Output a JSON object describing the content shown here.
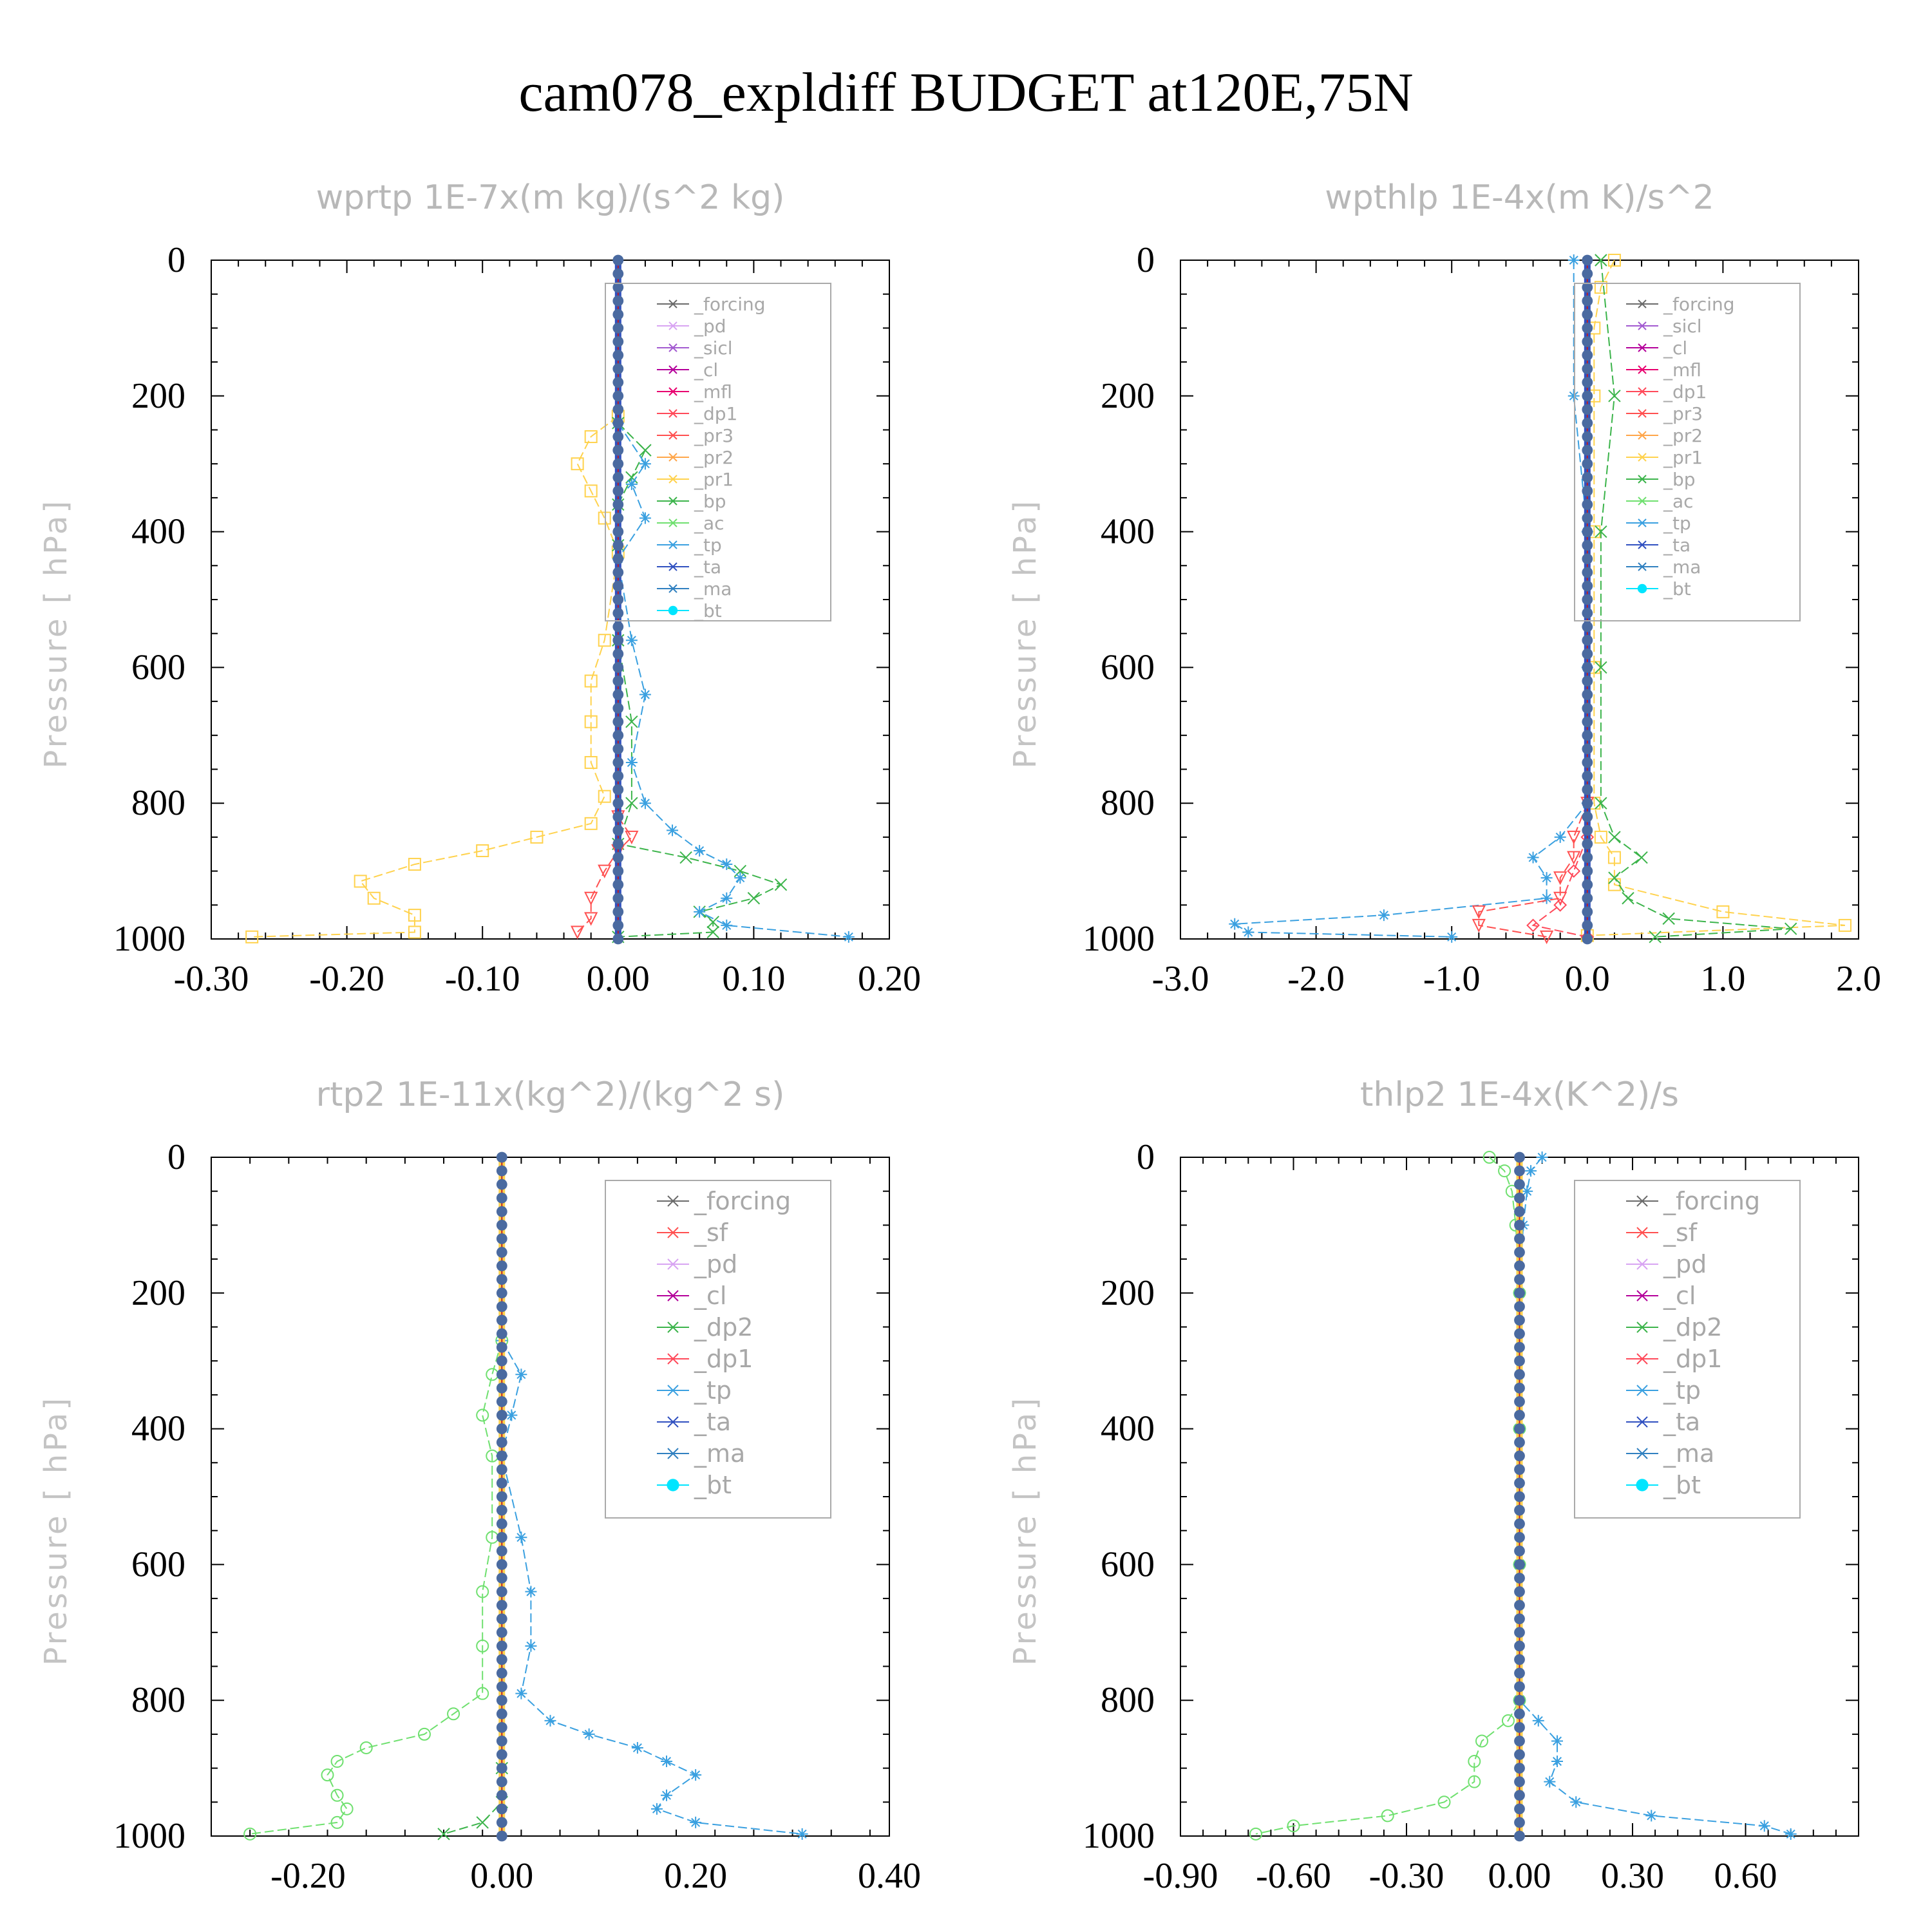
{
  "figure": {
    "title": "cam078_expldiff  BUDGET at120E,75N"
  },
  "colors": {
    "forcing": "#6b6b6b",
    "pd": "#d8a4f2",
    "sicl": "#a25ad0",
    "cl": "#b4009a",
    "mfl": "#e8006f",
    "dp1": "#ff4a5a",
    "pr3": "#ff5050",
    "pr2": "#ffa64a",
    "pr1": "#ffd24d",
    "bp": "#3cb44b",
    "ac": "#6fe06f",
    "tp": "#3aa0e0",
    "ta": "#3050c0",
    "ma": "#3080c0",
    "bt": "#00e5ff",
    "sf": "#ff5050",
    "dp2": "#3cb44b"
  },
  "chart_data": [
    {
      "type": "line",
      "title": "wprtp  1E-7x(m kg)/(s^2 kg)",
      "ylabel": "Pressure [ hPa]",
      "xlim": [
        -0.3,
        0.2
      ],
      "ylim": [
        1000,
        0
      ],
      "xticks": [
        "-0.30",
        "-0.20",
        "-0.10",
        "0.00",
        "0.10",
        "0.20"
      ],
      "xtick_values": [
        -0.3,
        -0.2,
        -0.1,
        0.0,
        0.1,
        0.2
      ],
      "yticks": [
        "0",
        "200",
        "400",
        "600",
        "800",
        "1000"
      ],
      "ytick_values": [
        0,
        200,
        400,
        600,
        800,
        1000
      ],
      "legend": [
        "_forcing",
        "_pd",
        "_sicl",
        "_cl",
        "_mfl",
        "_dp1",
        "_pr3",
        "_pr2",
        "_pr1",
        "_bp",
        "_ac",
        "_tp",
        "_ta",
        "_ma",
        "_bt"
      ],
      "legend_position": "top-right",
      "series": [
        {
          "name": "_pr1",
          "color_key": "pr1",
          "marker": "square",
          "p": [
            230,
            260,
            300,
            340,
            380,
            430,
            560,
            620,
            680,
            740,
            790,
            830,
            850,
            870,
            890,
            915,
            940,
            965,
            990,
            997
          ],
          "v": [
            0.0,
            -0.02,
            -0.03,
            -0.02,
            -0.01,
            0.0,
            -0.01,
            -0.02,
            -0.02,
            -0.02,
            -0.01,
            -0.02,
            -0.06,
            -0.1,
            -0.15,
            -0.19,
            -0.18,
            -0.15,
            -0.15,
            -0.27
          ]
        },
        {
          "name": "_bp",
          "color_key": "bp",
          "marker": "x",
          "p": [
            240,
            280,
            320,
            360,
            420,
            560,
            680,
            800,
            860,
            880,
            900,
            920,
            940,
            960,
            975,
            990,
            997
          ],
          "v": [
            0.0,
            0.02,
            0.01,
            0.0,
            0.0,
            0.0,
            0.01,
            0.01,
            0.0,
            0.05,
            0.09,
            0.12,
            0.1,
            0.06,
            0.07,
            0.07,
            0.0
          ]
        },
        {
          "name": "_tp",
          "color_key": "tp",
          "marker": "star",
          "p": [
            240,
            300,
            330,
            380,
            440,
            560,
            640,
            740,
            800,
            840,
            870,
            890,
            910,
            940,
            960,
            980,
            997
          ],
          "v": [
            0.0,
            0.02,
            0.01,
            0.02,
            0.0,
            0.01,
            0.02,
            0.01,
            0.02,
            0.04,
            0.06,
            0.08,
            0.09,
            0.08,
            0.06,
            0.08,
            0.17
          ]
        },
        {
          "name": "_dp1",
          "color_key": "pr3",
          "marker": "triangle-down",
          "p": [
            820,
            850,
            870,
            900,
            940,
            970,
            990
          ],
          "v": [
            0.0,
            0.01,
            0.0,
            -0.01,
            -0.02,
            -0.02,
            -0.03
          ]
        },
        {
          "name": "_bt",
          "color_key": "ta",
          "marker": "dot",
          "p": [
            0,
            1000
          ],
          "v": [
            0.0,
            0.0
          ]
        }
      ]
    },
    {
      "type": "line",
      "title": "wpthlp  1E-4x(m K)/s^2",
      "ylabel": "Pressure [ hPa]",
      "xlim": [
        -3.0,
        2.0
      ],
      "ylim": [
        1000,
        0
      ],
      "xticks": [
        "-3.0",
        "-2.0",
        "-1.0",
        "0.0",
        "1.0",
        "2.0"
      ],
      "xtick_values": [
        -3.0,
        -2.0,
        -1.0,
        0.0,
        1.0,
        2.0
      ],
      "yticks": [
        "0",
        "200",
        "400",
        "600",
        "800",
        "1000"
      ],
      "ytick_values": [
        0,
        200,
        400,
        600,
        800,
        1000
      ],
      "legend": [
        "_forcing",
        "_sicl",
        "_cl",
        "_mfl",
        "_dp1",
        "_pr3",
        "_pr2",
        "_pr1",
        "_bp",
        "_ac",
        "_tp",
        "_ta",
        "_ma",
        "_bt"
      ],
      "legend_position": "top-right",
      "series": [
        {
          "name": "_pr1",
          "color_key": "pr1",
          "marker": "square",
          "p": [
            0,
            40,
            100,
            200,
            400,
            600,
            800,
            850,
            880,
            920,
            960,
            980,
            995
          ],
          "v": [
            0.2,
            0.1,
            0.05,
            0.05,
            0.05,
            0.05,
            0.05,
            0.1,
            0.2,
            0.2,
            1.0,
            1.9,
            0.0
          ]
        },
        {
          "name": "_bp",
          "color_key": "bp",
          "marker": "x",
          "p": [
            0,
            200,
            400,
            600,
            800,
            850,
            880,
            910,
            940,
            970,
            985,
            997
          ],
          "v": [
            0.1,
            0.2,
            0.1,
            0.1,
            0.1,
            0.2,
            0.4,
            0.2,
            0.3,
            0.6,
            1.5,
            0.5
          ]
        },
        {
          "name": "_tp",
          "color_key": "tp",
          "marker": "star",
          "p": [
            0,
            200,
            400,
            600,
            800,
            850,
            880,
            910,
            940,
            965,
            978,
            990,
            997
          ],
          "v": [
            -0.1,
            -0.1,
            0.0,
            0.0,
            0.0,
            -0.2,
            -0.4,
            -0.3,
            -0.3,
            -1.5,
            -2.6,
            -2.5,
            -1.0
          ]
        },
        {
          "name": "_pr3",
          "color_key": "pr3",
          "marker": "triangle-down",
          "p": [
            800,
            850,
            880,
            910,
            940,
            960,
            980,
            997
          ],
          "v": [
            0.0,
            -0.1,
            -0.1,
            -0.2,
            -0.2,
            -0.8,
            -0.8,
            -0.3
          ]
        },
        {
          "name": "_dp1",
          "color_key": "dp1",
          "marker": "diamond",
          "p": [
            850,
            900,
            950,
            980,
            997
          ],
          "v": [
            0.0,
            -0.1,
            -0.2,
            -0.4,
            0.0
          ]
        },
        {
          "name": "_bt",
          "color_key": "ta",
          "marker": "dot",
          "p": [
            0,
            1000
          ],
          "v": [
            0.0,
            0.0
          ]
        }
      ]
    },
    {
      "type": "line",
      "title": "rtp2  1E-11x(kg^2)/(kg^2 s)",
      "ylabel": "Pressure [ hPa]",
      "xlim": [
        -0.3,
        0.4
      ],
      "ylim": [
        1000,
        0
      ],
      "xticks": [
        "-0.20",
        "0.00",
        "0.20",
        "0.40"
      ],
      "xtick_values": [
        -0.2,
        0.0,
        0.2,
        0.4
      ],
      "yticks": [
        "0",
        "200",
        "400",
        "600",
        "800",
        "1000"
      ],
      "ytick_values": [
        0,
        200,
        400,
        600,
        800,
        1000
      ],
      "legend": [
        "_forcing",
        "_sf",
        "_pd",
        "_cl",
        "_dp2",
        "_dp1",
        "_tp",
        "_ta",
        "_ma",
        "_bt"
      ],
      "legend_position": "top-right",
      "series": [
        {
          "name": "_dp1",
          "color_key": "ac",
          "marker": "circle",
          "p": [
            270,
            320,
            380,
            440,
            560,
            640,
            720,
            790,
            820,
            850,
            870,
            890,
            910,
            940,
            960,
            980,
            997
          ],
          "v": [
            0.0,
            -0.01,
            -0.02,
            -0.01,
            -0.01,
            -0.02,
            -0.02,
            -0.02,
            -0.05,
            -0.08,
            -0.14,
            -0.17,
            -0.18,
            -0.17,
            -0.16,
            -0.17,
            -0.26
          ]
        },
        {
          "name": "_tp",
          "color_key": "tp",
          "marker": "star",
          "p": [
            270,
            320,
            380,
            440,
            560,
            640,
            720,
            790,
            830,
            850,
            870,
            890,
            910,
            940,
            960,
            980,
            997
          ],
          "v": [
            0.0,
            0.02,
            0.01,
            0.0,
            0.02,
            0.03,
            0.03,
            0.02,
            0.05,
            0.09,
            0.14,
            0.17,
            0.2,
            0.17,
            0.16,
            0.2,
            0.31
          ]
        },
        {
          "name": "_dp2",
          "color_key": "dp2",
          "marker": "x",
          "p": [
            900,
            950,
            980,
            997
          ],
          "v": [
            0.0,
            0.0,
            -0.02,
            -0.06
          ]
        },
        {
          "name": "_bt",
          "color_key": "pr1",
          "marker": "dot",
          "p": [
            0,
            1000
          ],
          "v": [
            0.0,
            0.0
          ]
        }
      ]
    },
    {
      "type": "line",
      "title": "thlp2  1E-4x(K^2)/s",
      "ylabel": "Pressure [ hPa]",
      "xlim": [
        -0.9,
        0.9
      ],
      "ylim": [
        1000,
        0
      ],
      "xticks": [
        "-0.90",
        "-0.60",
        "-0.30",
        "0.00",
        "0.30",
        "0.60"
      ],
      "xtick_values": [
        -0.9,
        -0.6,
        -0.3,
        0.0,
        0.3,
        0.6
      ],
      "yticks": [
        "0",
        "200",
        "400",
        "600",
        "800",
        "1000"
      ],
      "ytick_values": [
        0,
        200,
        400,
        600,
        800,
        1000
      ],
      "legend": [
        "_forcing",
        "_sf",
        "_pd",
        "_cl",
        "_dp2",
        "_dp1",
        "_tp",
        "_ta",
        "_ma",
        "_bt"
      ],
      "legend_position": "top-right",
      "series": [
        {
          "name": "_dp1",
          "color_key": "ac",
          "marker": "circle",
          "p": [
            0,
            20,
            50,
            100,
            200,
            400,
            600,
            800,
            830,
            860,
            890,
            920,
            950,
            970,
            985,
            997
          ],
          "v": [
            -0.08,
            -0.04,
            -0.02,
            -0.01,
            0.0,
            0.0,
            0.0,
            0.0,
            -0.03,
            -0.1,
            -0.12,
            -0.12,
            -0.2,
            -0.35,
            -0.6,
            -0.7
          ]
        },
        {
          "name": "_tp",
          "color_key": "tp",
          "marker": "star",
          "p": [
            0,
            20,
            50,
            100,
            200,
            400,
            600,
            800,
            830,
            860,
            890,
            920,
            950,
            970,
            985,
            997
          ],
          "v": [
            0.06,
            0.03,
            0.02,
            0.01,
            0.0,
            0.0,
            0.0,
            0.0,
            0.05,
            0.1,
            0.1,
            0.08,
            0.15,
            0.35,
            0.65,
            0.72
          ]
        },
        {
          "name": "_bt",
          "color_key": "pr1",
          "marker": "dot",
          "p": [
            0,
            1000
          ],
          "v": [
            0.0,
            0.0
          ]
        }
      ]
    }
  ]
}
